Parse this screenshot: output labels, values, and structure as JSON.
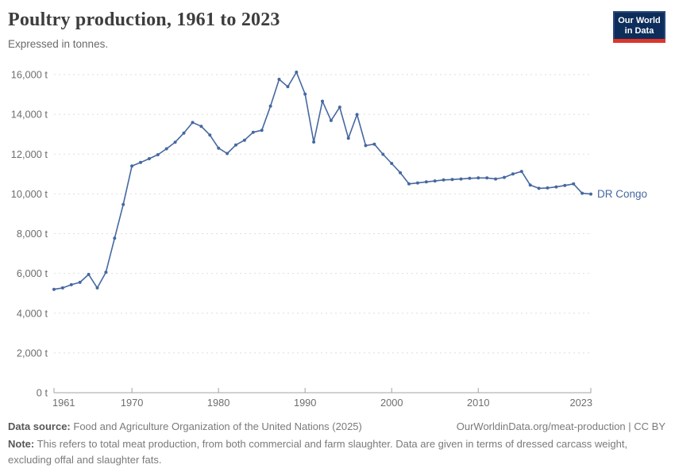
{
  "header": {
    "title": "Poultry production, 1961 to 2023",
    "subtitle": "Expressed in tonnes.",
    "logo_line1": "Our World",
    "logo_line2": "in Data"
  },
  "colors": {
    "line_blue": "#4668A0",
    "logo_navy": "#0d2d5a",
    "logo_red": "#dc352b",
    "gridline": "#dedede",
    "axis": "#a3a3a3",
    "axis_text": "#6e6e6e"
  },
  "chart_data": {
    "type": "line",
    "title": "Poultry production, 1961 to 2023",
    "subtitle": "Expressed in tonnes.",
    "unit": "t",
    "xlabel": "",
    "ylabel": "",
    "ylim": [
      0,
      16000
    ],
    "ytick_step": 2000,
    "ytick_suffix": " t",
    "xticks": [
      1961,
      1970,
      1980,
      1990,
      2000,
      2010,
      2023
    ],
    "grid": "horizontal dashed",
    "legend_position": "end-of-line label",
    "x": [
      1961,
      1962,
      1963,
      1964,
      1965,
      1966,
      1967,
      1968,
      1969,
      1970,
      1971,
      1972,
      1973,
      1974,
      1975,
      1976,
      1977,
      1978,
      1979,
      1980,
      1981,
      1982,
      1983,
      1984,
      1985,
      1986,
      1987,
      1988,
      1989,
      1990,
      1991,
      1992,
      1993,
      1994,
      1995,
      1996,
      1997,
      1998,
      1999,
      2000,
      2001,
      2002,
      2003,
      2004,
      2005,
      2006,
      2007,
      2008,
      2009,
      2010,
      2011,
      2012,
      2013,
      2014,
      2015,
      2016,
      2017,
      2018,
      2019,
      2020,
      2021,
      2022,
      2023
    ],
    "series": [
      {
        "name": "DR Congo",
        "color": "#4668A0",
        "values": [
          5200,
          5270,
          5430,
          5550,
          5950,
          5270,
          6060,
          7770,
          9470,
          11400,
          11580,
          11770,
          11970,
          12270,
          12600,
          13060,
          13590,
          13400,
          12960,
          12300,
          12030,
          12460,
          12700,
          13100,
          13200,
          14410,
          15760,
          15390,
          16120,
          15020,
          12610,
          14660,
          13690,
          14360,
          12800,
          13990,
          12430,
          12500,
          11990,
          11530,
          11060,
          10500,
          10550,
          10600,
          10650,
          10700,
          10720,
          10750,
          10780,
          10800,
          10800,
          10750,
          10830,
          11000,
          11130,
          10440,
          10280,
          10300,
          10350,
          10420,
          10500,
          10030,
          9990
        ]
      }
    ]
  },
  "footer": {
    "datasource_label": "Data source:",
    "datasource": "Food and Agriculture Organization of the United Nations (2025)",
    "link": "OurWorldinData.org/meat-production | CC BY",
    "note_label": "Note:",
    "note": "This refers to total meat production, from both commercial and farm slaughter. Data are given in terms of dressed carcass weight, excluding offal and slaughter fats."
  }
}
